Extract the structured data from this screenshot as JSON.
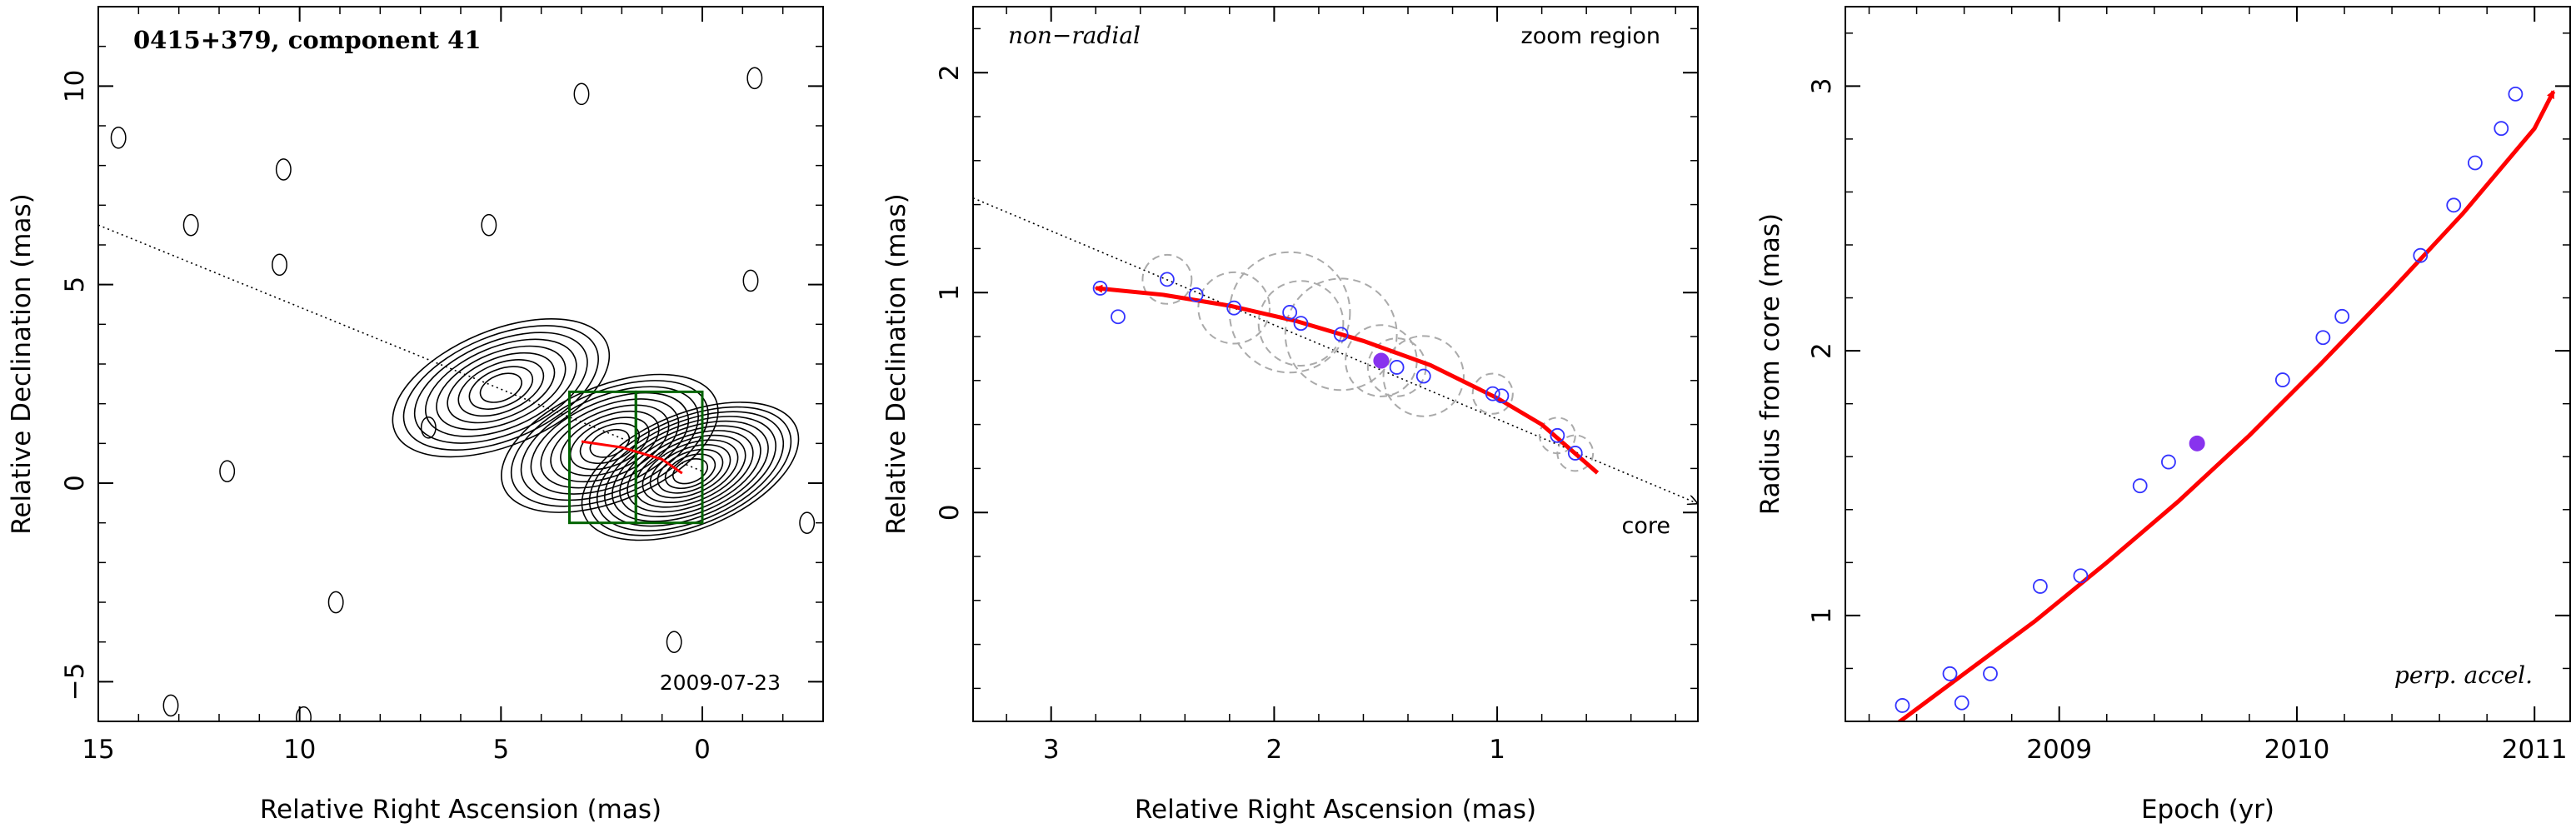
{
  "figure": {
    "background": "#ffffff",
    "accent_colors": {
      "fit": "#ff0000",
      "points": "#3333ff",
      "box": "#006400",
      "ellipses": "#aaaaaa"
    }
  },
  "chart_data": [
    {
      "type": "contour",
      "title": "0415+379, component 41",
      "date_label": "2009-07-23",
      "xlabel": "Relative Right Ascension (mas)",
      "ylabel": "Relative Declination (mas)",
      "xlim": [
        15,
        -3
      ],
      "ylim": [
        -6,
        12
      ],
      "xticks": [
        15,
        10,
        5,
        0
      ],
      "yticks": [
        -5,
        0,
        5,
        10
      ],
      "grid": false,
      "ridge_line": {
        "x": [
          15,
          0
        ],
        "y": [
          6.5,
          0.3
        ]
      },
      "zoom_box": {
        "x": [
          3.3,
          0.0
        ],
        "y": [
          -1.0,
          2.3
        ]
      },
      "trajectory": {
        "x": [
          3.0,
          2.0,
          1.0,
          0.5
        ],
        "y": [
          1.05,
          0.9,
          0.6,
          0.25
        ]
      },
      "jet_knots": [
        {
          "x": 5.0,
          "y": 2.4,
          "peak_level": 9
        },
        {
          "x": 2.3,
          "y": 1.0,
          "peak_level": 10
        },
        {
          "x": 0.3,
          "y": 0.3,
          "peak_level": 13
        }
      ],
      "isolated_features": [
        {
          "x": 10.5,
          "y": 5.5
        },
        {
          "x": 12.7,
          "y": 6.5
        },
        {
          "x": 5.3,
          "y": 6.5
        },
        {
          "x": 10.4,
          "y": 7.9
        },
        {
          "x": 14.5,
          "y": 8.7
        },
        {
          "x": 3.0,
          "y": 9.8
        },
        {
          "x": -1.3,
          "y": 10.2
        },
        {
          "x": -1.2,
          "y": 5.1
        },
        {
          "x": 6.8,
          "y": 1.4
        },
        {
          "x": 11.8,
          "y": 0.3
        },
        {
          "x": 9.1,
          "y": -3.0
        },
        {
          "x": 0.7,
          "y": -4.0
        },
        {
          "x": 13.2,
          "y": -5.6
        },
        {
          "x": 9.9,
          "y": -5.9
        },
        {
          "x": -2.6,
          "y": -1.0
        }
      ]
    },
    {
      "type": "scatter",
      "title": "",
      "corner_labels": {
        "top_left": "non−radial",
        "top_right": "zoom region",
        "core": "core"
      },
      "xlabel": "Relative Right Ascension (mas)",
      "ylabel": "Relative Declination (mas)",
      "xlim": [
        3.35,
        0.1
      ],
      "ylim": [
        -0.95,
        2.3
      ],
      "xticks": [
        3,
        2,
        1
      ],
      "yticks": [
        0,
        1,
        2
      ],
      "grid": false,
      "ridge_line": {
        "x": [
          3.35,
          0.1
        ],
        "y": [
          1.43,
          0.04
        ]
      },
      "points": {
        "x": [
          2.78,
          2.7,
          2.48,
          2.35,
          2.18,
          1.93,
          1.88,
          1.7,
          1.52,
          1.45,
          1.33,
          1.02,
          0.98,
          0.73,
          0.65
        ],
        "y": [
          1.02,
          0.89,
          1.06,
          0.99,
          0.93,
          0.91,
          0.86,
          0.81,
          0.69,
          0.66,
          0.62,
          0.54,
          0.53,
          0.35,
          0.27
        ]
      },
      "highlight_point": {
        "x": 1.52,
        "y": 0.69
      },
      "error_ellipses": [
        {
          "x": 2.48,
          "y": 1.06,
          "r": 0.11
        },
        {
          "x": 2.18,
          "y": 0.93,
          "r": 0.16
        },
        {
          "x": 1.93,
          "y": 0.91,
          "r": 0.27
        },
        {
          "x": 1.88,
          "y": 0.86,
          "r": 0.19
        },
        {
          "x": 1.7,
          "y": 0.81,
          "r": 0.25
        },
        {
          "x": 1.52,
          "y": 0.69,
          "r": 0.16
        },
        {
          "x": 1.45,
          "y": 0.66,
          "r": 0.13
        },
        {
          "x": 1.33,
          "y": 0.62,
          "r": 0.18
        },
        {
          "x": 1.02,
          "y": 0.54,
          "r": 0.09
        },
        {
          "x": 0.73,
          "y": 0.35,
          "r": 0.08
        },
        {
          "x": 0.65,
          "y": 0.27,
          "r": 0.08
        }
      ],
      "fit": {
        "x": [
          2.8,
          2.5,
          2.2,
          1.9,
          1.6,
          1.3,
          1.0,
          0.8,
          0.55
        ],
        "y": [
          1.02,
          0.99,
          0.94,
          0.87,
          0.78,
          0.67,
          0.52,
          0.4,
          0.18
        ]
      }
    },
    {
      "type": "scatter",
      "title": "",
      "corner_labels": {
        "bottom_right": "perp. accel."
      },
      "xlabel": "Epoch (yr)",
      "ylabel": "Radius from core (mas)",
      "xlim": [
        2008.1,
        2011.15
      ],
      "ylim": [
        0.6,
        3.3
      ],
      "xticks": [
        2009,
        2010,
        2011
      ],
      "yticks": [
        1,
        2,
        3
      ],
      "grid": false,
      "points": {
        "x": [
          2008.34,
          2008.54,
          2008.59,
          2008.71,
          2008.92,
          2009.09,
          2009.34,
          2009.46,
          2009.58,
          2009.94,
          2010.11,
          2010.19,
          2010.52,
          2010.66,
          2010.75,
          2010.86,
          2010.92
        ],
        "y": [
          0.66,
          0.78,
          0.67,
          0.78,
          1.11,
          1.15,
          1.49,
          1.58,
          1.65,
          1.89,
          2.05,
          2.13,
          2.36,
          2.55,
          2.71,
          2.84,
          2.97
        ]
      },
      "highlight_point": {
        "x": 2009.58,
        "y": 1.65
      },
      "fit": {
        "x": [
          2008.3,
          2008.6,
          2008.9,
          2009.2,
          2009.5,
          2009.8,
          2010.1,
          2010.4,
          2010.7,
          2011.0,
          2011.08
        ],
        "y": [
          0.58,
          0.78,
          0.98,
          1.2,
          1.43,
          1.68,
          1.95,
          2.23,
          2.52,
          2.84,
          2.98
        ]
      }
    }
  ]
}
